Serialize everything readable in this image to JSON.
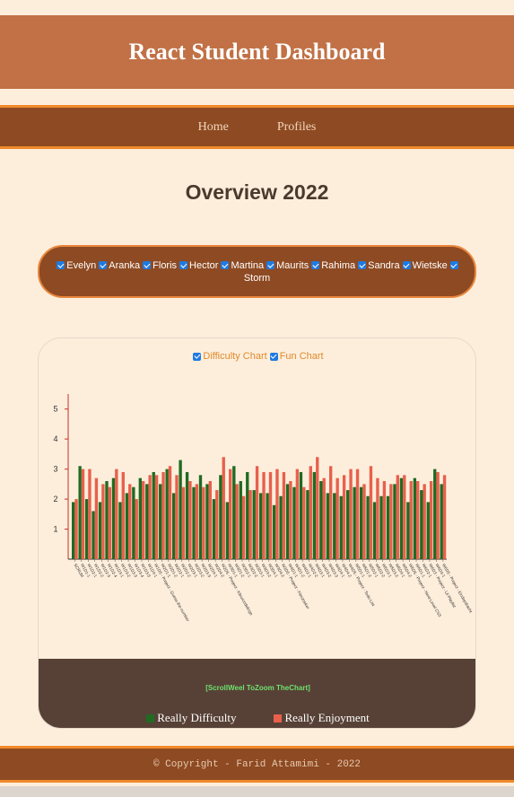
{
  "header": {
    "title": "React Student Dashboard"
  },
  "nav": {
    "items": [
      "Home",
      "Profiles"
    ]
  },
  "page_title": "Overview 2022",
  "students": [
    "Evelyn",
    "Aranka",
    "Floris",
    "Hector",
    "Martina",
    "Maurits",
    "Rahima",
    "Sandra",
    "Wietske",
    "Storm"
  ],
  "chart_toggles": [
    "Difficulty Chart",
    "Fun Chart"
  ],
  "scroll_hint": "[ScrollWeel ToZoom TheChart]",
  "legend": {
    "difficulty": "Really Difficulty",
    "enjoyment": "Really Enjoyment"
  },
  "colors": {
    "difficulty": "#1f6b22",
    "enjoyment": "#e8604c",
    "axis": "#c8302a"
  },
  "footer": {
    "text": "©  Copyright - Farid Attamimi - 2022"
  },
  "chart_data": {
    "type": "bar",
    "ylim": [
      0,
      5.5
    ],
    "yticks": [
      1,
      2,
      3,
      4,
      5
    ],
    "categories": [
      "SCRUM",
      "W1D1-1",
      "W1D2-1",
      "W1D2-2",
      "W1D2-3",
      "W1D2-4",
      "W1D3-1",
      "W1D3-2",
      "W1D3-3",
      "W1D3-4",
      "W1D3-5",
      "W1D4-1",
      "W1D5 - Project - Guess-the-number",
      "W2D1-1",
      "W2D1-2",
      "W2D2-1",
      "W2D2-2",
      "W2D3-1",
      "W2D3-2",
      "W2D3-3",
      "W2D4-1",
      "W2D4-2",
      "W2D5 - Project - Kleurcodelingo",
      "W3D1-1",
      "W3D1-2",
      "W3D2-1",
      "W3D2-2",
      "W3D3-1",
      "W3D3-2",
      "W3D4-1",
      "W3D4-2",
      "W3D5 - Project - Filmzoeker",
      "W4D1-1",
      "W4D1-2",
      "W4D2-1",
      "W4D2-2",
      "W4D3-1",
      "W4D3-2",
      "W4D3-3",
      "W4D4-1",
      "W4D4-2",
      "W4D5 - Project - Todo-List",
      "W5D1-1",
      "W5D1-2",
      "W5D2-1",
      "W5D2-2",
      "W5D3-1",
      "W5D3-2",
      "W5D4-1",
      "W5D4-2",
      "W5D5 - Project - Next-Level CSS",
      "W6D1-1",
      "W6D2-1",
      "W6D3 - Project - Lil Playlist",
      "W6D4-1",
      "W6D5 - Project - Eindopdracht"
    ],
    "series": [
      {
        "name": "Really Difficulty",
        "values": [
          1.9,
          3.1,
          2.0,
          1.6,
          1.9,
          2.6,
          2.7,
          1.9,
          2.2,
          2.4,
          2.7,
          2.5,
          2.9,
          2.5,
          3.0,
          2.2,
          3.3,
          2.9,
          2.4,
          2.8,
          2.5,
          2.0,
          2.8,
          1.9,
          3.1,
          2.6,
          2.9,
          2.3,
          2.2,
          2.2,
          1.8,
          2.1,
          2.5,
          2.4,
          2.9,
          2.3,
          2.9,
          2.6,
          2.2,
          2.2,
          2.1,
          2.3,
          2.4,
          2.4,
          2.1,
          1.9,
          2.1,
          2.1,
          2.5,
          2.7,
          1.9,
          2.7,
          2.3,
          1.9,
          3.0,
          2.5
        ]
      },
      {
        "name": "Really Enjoyment",
        "values": [
          2.0,
          3.0,
          3.0,
          2.7,
          2.5,
          2.4,
          3.0,
          2.9,
          2.5,
          2.0,
          2.6,
          2.8,
          2.8,
          2.9,
          3.1,
          2.8,
          2.4,
          2.6,
          2.5,
          2.4,
          2.6,
          2.3,
          3.4,
          3.0,
          2.5,
          2.1,
          2.3,
          3.1,
          2.9,
          2.9,
          3.0,
          2.9,
          2.6,
          3.0,
          2.4,
          3.1,
          3.4,
          2.7,
          3.1,
          2.7,
          2.8,
          3.0,
          3.0,
          2.5,
          3.1,
          2.7,
          2.6,
          2.5,
          2.8,
          2.8,
          2.6,
          2.6,
          2.5,
          2.6,
          2.9,
          2.8
        ]
      }
    ],
    "legend": "bottom",
    "grid": false
  }
}
